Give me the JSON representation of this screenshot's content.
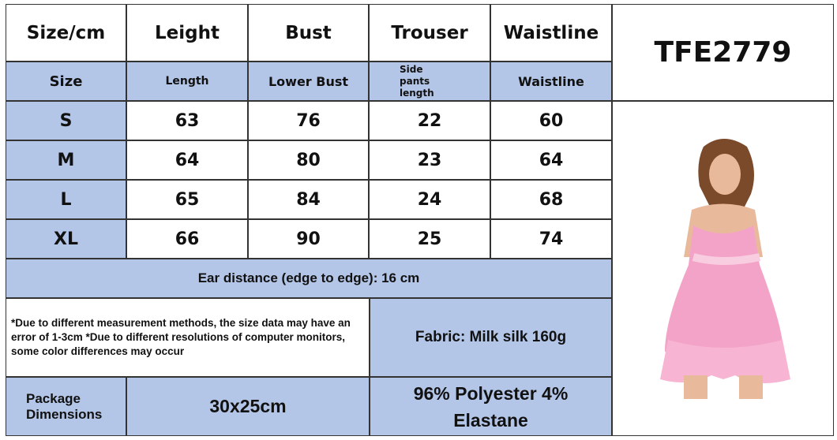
{
  "header": [
    "Size/cm",
    "Leight",
    "Bust",
    "Trouser",
    "Waistline"
  ],
  "subheader": [
    "Size",
    "Length",
    "Lower Bust",
    "Side pants length",
    "Waistline"
  ],
  "product_code": "TFE2779",
  "rows": [
    [
      "S",
      "63",
      "76",
      "22",
      "60"
    ],
    [
      "M",
      "64",
      "80",
      "23",
      "64"
    ],
    [
      "L",
      "65",
      "84",
      "24",
      "68"
    ],
    [
      "XL",
      "66",
      "90",
      "25",
      "74"
    ]
  ],
  "ear_distance": "Ear distance (edge to edge): 16 cm",
  "disclaimer": "*Due to different measurement methods, the size data may have an error of 1-3cm *Due to different resolutions of computer monitors, some color differences may occur",
  "fabric": "Fabric: Milk silk 160g",
  "package_label": "Package Dimensions",
  "package_value": "30x25cm",
  "composition": "96% Polyester 4% Elastane",
  "colors": {
    "header_blue": "#b4c6e7",
    "garment_pink": "#f4a3c8"
  }
}
